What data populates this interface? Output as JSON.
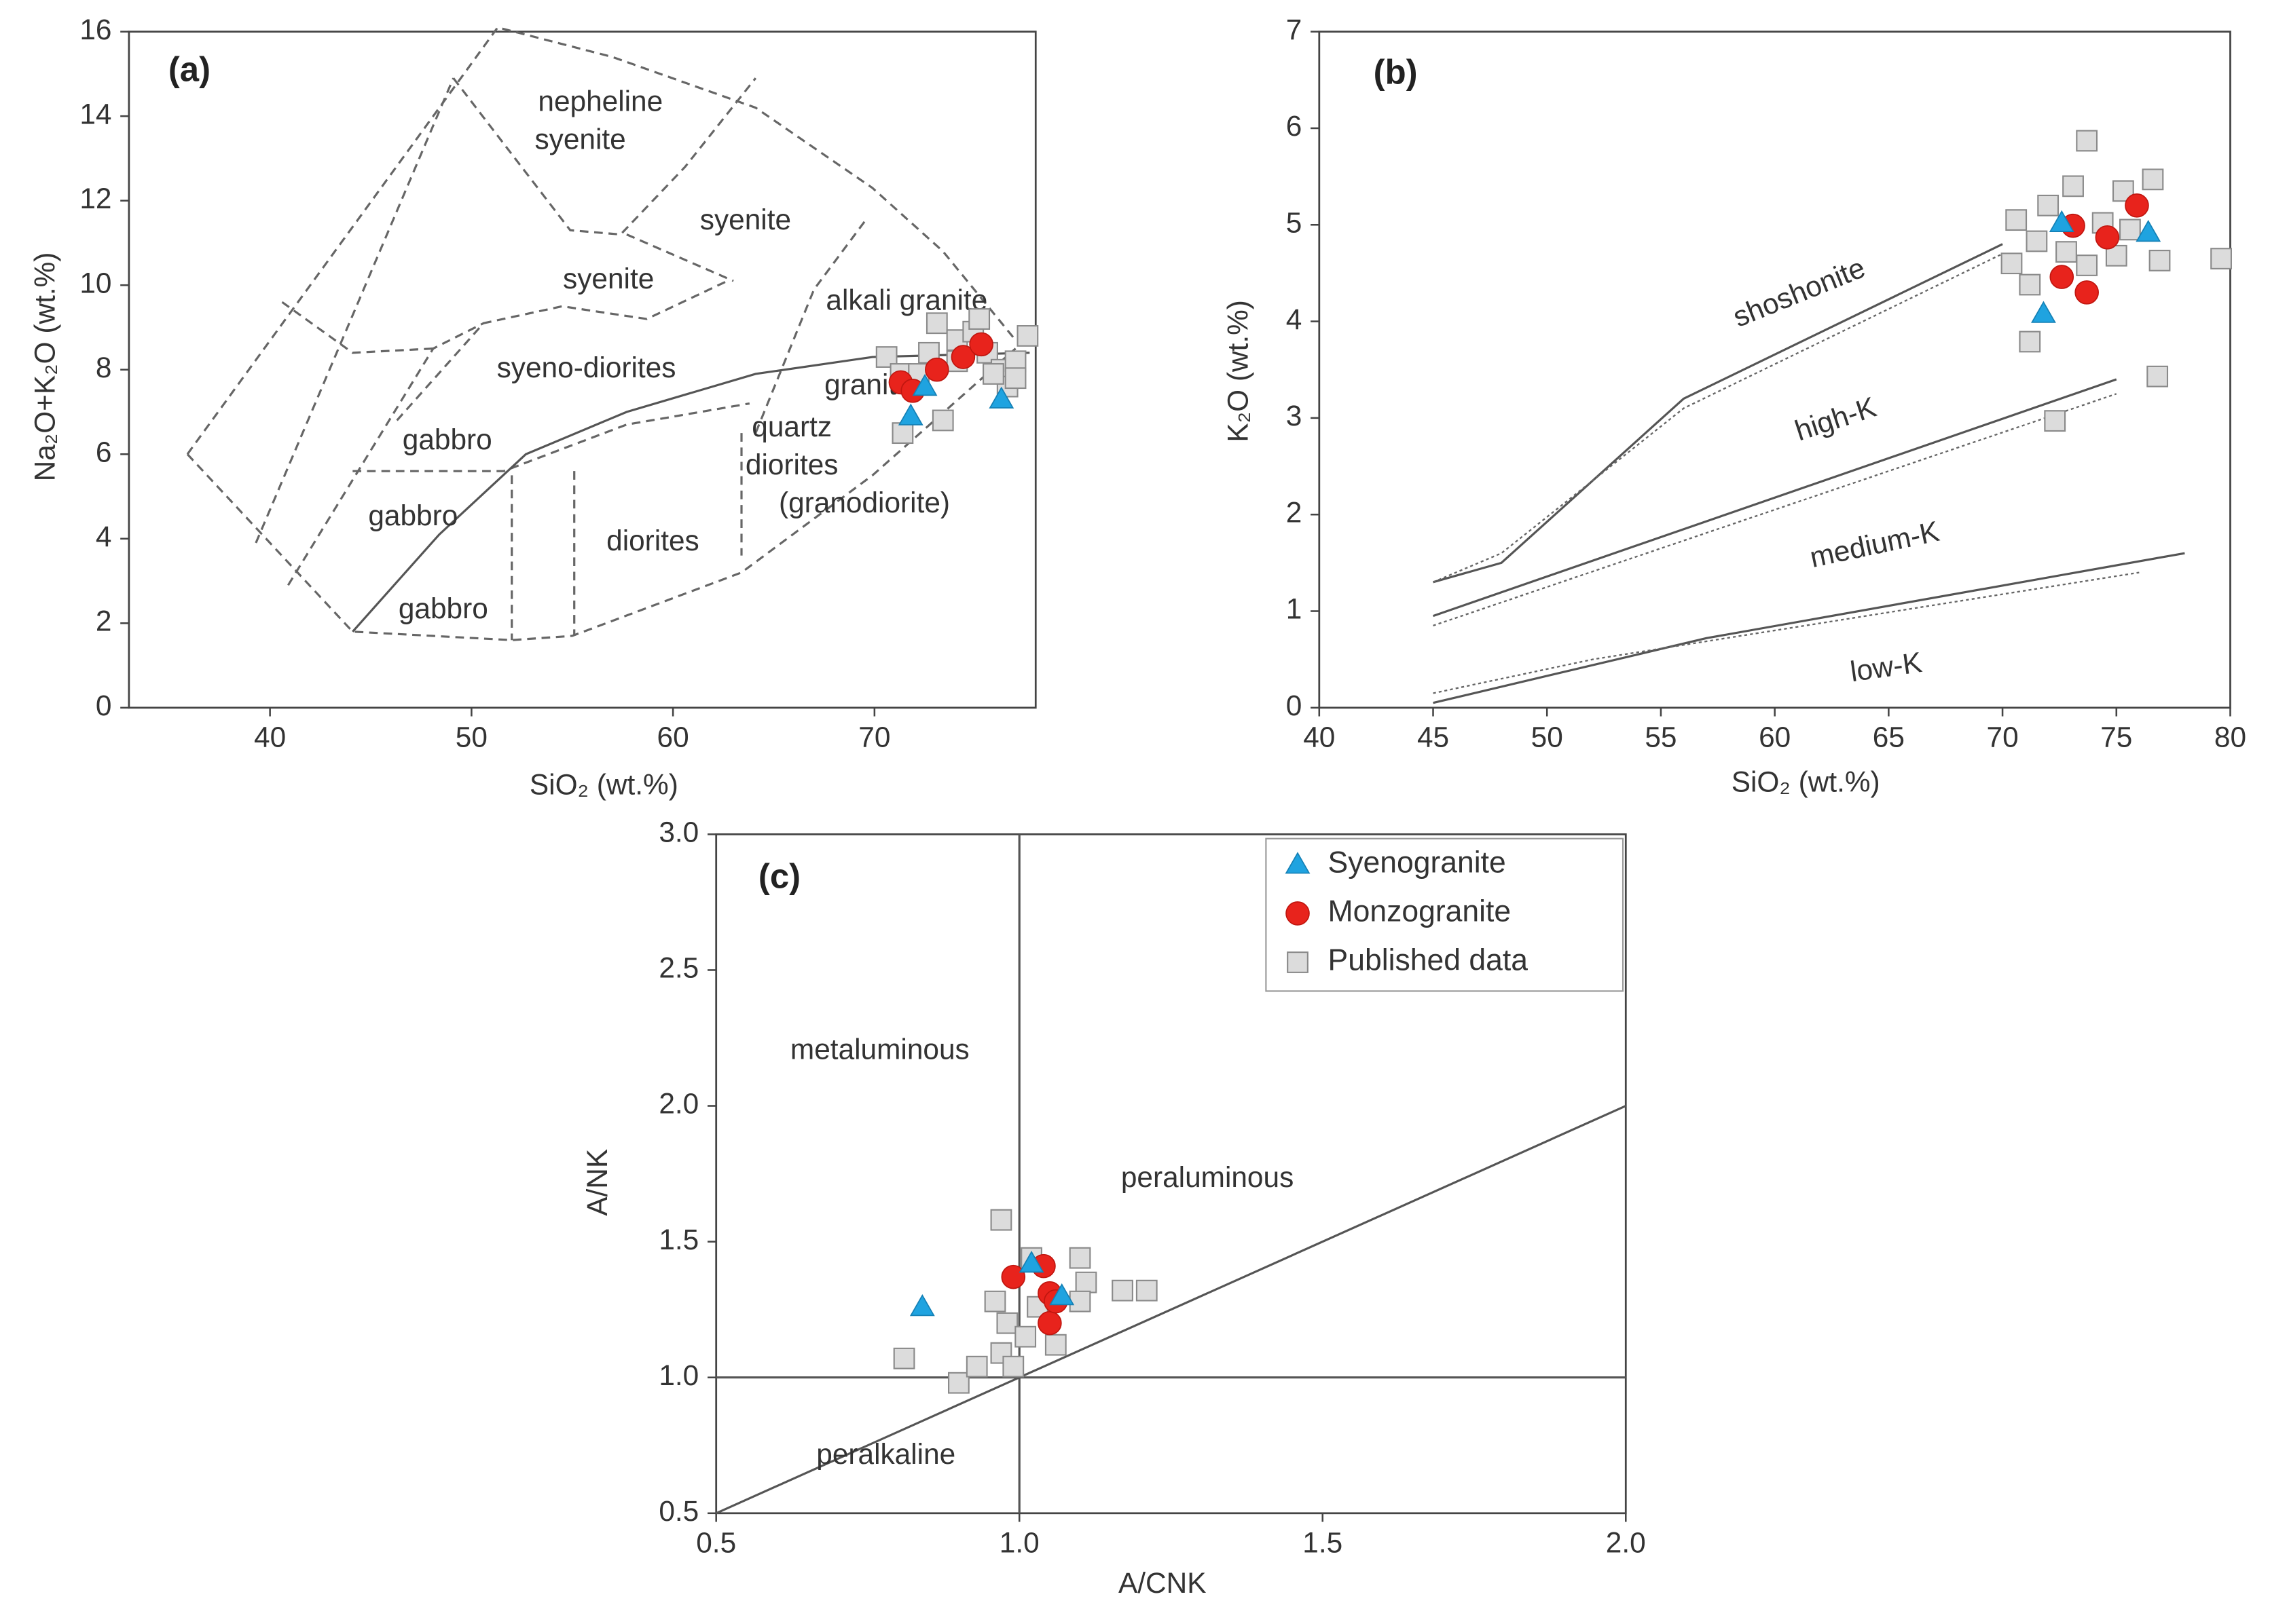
{
  "chart_data": [
    {
      "type": "scatter",
      "title": "(a)",
      "x_label": "SiO₂ (wt.%)",
      "y_label": "Na₂O+K₂O (wt.%)",
      "xlim": [
        33,
        78
      ],
      "ylim": [
        0,
        16
      ],
      "xticks": [
        40,
        50,
        60,
        70
      ],
      "yticks": [
        0,
        2,
        4,
        6,
        8,
        10,
        12,
        14,
        16
      ],
      "grid": false,
      "lines": [
        {
          "style": "dashed",
          "x": [
            35.9,
            51.3,
            57,
            64.1,
            69.9,
            73.4,
            77
          ],
          "y": [
            6.0,
            16.1,
            15.4,
            14.2,
            12.3,
            10.8,
            8.7
          ]
        },
        {
          "style": "dashed",
          "x": [
            35.9,
            44.1,
            52,
            55,
            63.4,
            69.9,
            77
          ],
          "y": [
            6.0,
            1.8,
            1.6,
            1.7,
            3.2,
            5.5,
            8.5
          ]
        },
        {
          "style": "dashed",
          "x": [
            39.3,
            49.1
          ],
          "y": [
            3.9,
            14.9
          ]
        },
        {
          "style": "dashed",
          "x": [
            40.9,
            48.1,
            50.6
          ],
          "y": [
            2.9,
            8.5,
            9.1
          ]
        },
        {
          "style": "dashed",
          "x": [
            40.6,
            44.1,
            48.1
          ],
          "y": [
            9.6,
            8.4,
            8.5
          ]
        },
        {
          "style": "dashed",
          "x": [
            46.3,
            50.6,
            54.5,
            58.7,
            62.7
          ],
          "y": [
            6.8,
            9.1,
            9.5,
            9.2,
            10.1
          ]
        },
        {
          "style": "dashed",
          "x": [
            44.1,
            51.6,
            57.7,
            63.8
          ],
          "y": [
            5.6,
            5.6,
            6.7,
            7.2
          ]
        },
        {
          "style": "dashed",
          "x": [
            52,
            52
          ],
          "y": [
            5.5,
            1.6
          ]
        },
        {
          "style": "dashed",
          "x": [
            55.1,
            55.1
          ],
          "y": [
            5.6,
            1.7
          ]
        },
        {
          "style": "dashed",
          "x": [
            63.4,
            63.4
          ],
          "y": [
            6.5,
            3.6
          ]
        },
        {
          "style": "dashed",
          "x": [
            49.1,
            54.9,
            57.4,
            60.6,
            64.1
          ],
          "y": [
            14.9,
            11.3,
            11.2,
            12.8,
            14.9
          ]
        },
        {
          "style": "dashed",
          "x": [
            57.7,
            63
          ],
          "y": [
            11.2,
            10.1
          ]
        },
        {
          "style": "dashed",
          "x": [
            69.5,
            67,
            64.1
          ],
          "y": [
            11.5,
            9.9,
            6.5
          ]
        },
        {
          "style": "solid",
          "x": [
            44.1,
            48.4,
            52.7,
            57.7,
            64.1,
            69.9,
            77.7
          ],
          "y": [
            1.8,
            4.1,
            6.0,
            7.0,
            7.9,
            8.3,
            8.4
          ]
        }
      ],
      "annotations": [
        {
          "text": "nepheline",
          "x": 56.4,
          "y": 14.3
        },
        {
          "text": "syenite",
          "x": 55.4,
          "y": 13.4
        },
        {
          "text": "syenite",
          "x": 63.6,
          "y": 11.5
        },
        {
          "text": "syenite",
          "x": 56.8,
          "y": 10.1
        },
        {
          "text": "alkali granite",
          "x": 71.6,
          "y": 9.6
        },
        {
          "text": "syeno-diorites",
          "x": 55.7,
          "y": 8.0
        },
        {
          "text": "granite",
          "x": 69.7,
          "y": 7.6
        },
        {
          "text": "gabbro",
          "x": 48.8,
          "y": 6.3
        },
        {
          "text": "gabbro",
          "x": 47.1,
          "y": 4.5
        },
        {
          "text": "gabbro",
          "x": 48.6,
          "y": 2.3
        },
        {
          "text": "quartz",
          "x": 65.9,
          "y": 6.6
        },
        {
          "text": "diorites",
          "x": 65.9,
          "y": 5.7
        },
        {
          "text": "(granodiorite)",
          "x": 69.5,
          "y": 4.8
        },
        {
          "text": "diorites",
          "x": 59,
          "y": 3.9
        }
      ],
      "series": [
        {
          "marker": "square",
          "color": "#dcdcdc",
          "x": [
            70.6,
            71.3,
            71.4,
            73.4,
            73.1,
            74.1,
            74.9,
            75.6,
            76.3,
            77,
            77.6,
            76.6,
            75.9,
            74.1,
            72.7,
            72.2,
            75.2,
            77
          ],
          "y": [
            8.3,
            7.9,
            6.5,
            6.8,
            9.1,
            8.7,
            8.9,
            8.4,
            8.0,
            8.2,
            8.8,
            7.6,
            7.9,
            8.2,
            8.4,
            7.9,
            9.2,
            7.8
          ]
        },
        {
          "marker": "circle",
          "color": "#e8231c",
          "x": [
            71.3,
            73.1,
            74.4,
            75.3,
            71.9
          ],
          "y": [
            7.7,
            8.0,
            8.3,
            8.6,
            7.5
          ]
        },
        {
          "marker": "triangle",
          "color": "#1fa3e0",
          "x": [
            71.8,
            76.3,
            72.5
          ],
          "y": [
            6.9,
            7.3,
            7.6
          ]
        }
      ]
    },
    {
      "type": "scatter",
      "title": "(b)",
      "x_label": "SiO₂ (wt.%)",
      "y_label": "K₂O (wt.%)",
      "xlim": [
        40,
        80
      ],
      "ylim": [
        0,
        7
      ],
      "xticks": [
        40,
        45,
        50,
        55,
        60,
        65,
        70,
        75,
        80
      ],
      "yticks": [
        0,
        1,
        2,
        3,
        4,
        5,
        6,
        7
      ],
      "grid": false,
      "lines": [
        {
          "style": "solid",
          "x": [
            45,
            48,
            56,
            70
          ],
          "y": [
            1.3,
            1.5,
            3.2,
            4.8
          ]
        },
        {
          "style": "dotted",
          "x": [
            45,
            48,
            56,
            70
          ],
          "y": [
            1.3,
            1.6,
            3.1,
            4.7
          ]
        },
        {
          "style": "solid",
          "x": [
            45,
            75
          ],
          "y": [
            0.95,
            3.4
          ]
        },
        {
          "style": "dotted",
          "x": [
            45,
            75
          ],
          "y": [
            0.85,
            3.25
          ]
        },
        {
          "style": "solid",
          "x": [
            45,
            57,
            78
          ],
          "y": [
            0.05,
            0.72,
            1.6
          ]
        },
        {
          "style": "dotted",
          "x": [
            45,
            52,
            76
          ],
          "y": [
            0.15,
            0.5,
            1.4
          ]
        }
      ],
      "annotations": [
        {
          "text": "shoshonite",
          "x": 61.1,
          "y": 4.28
        },
        {
          "text": "high-K",
          "x": 62.7,
          "y": 2.97
        },
        {
          "text": "medium-K",
          "x": 64.4,
          "y": 1.67
        },
        {
          "text": "low-K",
          "x": 64.9,
          "y": 0.4
        }
      ],
      "series": [
        {
          "marker": "square",
          "color": "#dcdcdc",
          "x": [
            70.6,
            70.4,
            71.2,
            72.0,
            73.1,
            73.7,
            75.3,
            76.6,
            75,
            76.9,
            79.6,
            76.8,
            72.3,
            71.5,
            72.8,
            73.7,
            75.6,
            71.2,
            74.4
          ],
          "y": [
            5.05,
            4.6,
            3.79,
            5.2,
            5.4,
            5.87,
            5.35,
            5.47,
            4.68,
            4.63,
            4.65,
            3.43,
            2.97,
            4.83,
            4.72,
            4.58,
            4.95,
            4.38,
            5.02
          ]
        },
        {
          "marker": "circle",
          "color": "#e8231c",
          "x": [
            73.1,
            75.9,
            74.6,
            72.6,
            73.7
          ],
          "y": [
            4.99,
            5.2,
            4.87,
            4.46,
            4.3
          ]
        },
        {
          "marker": "triangle",
          "color": "#1fa3e0",
          "x": [
            72.6,
            71.8,
            76.4
          ],
          "y": [
            5.02,
            4.08,
            4.92
          ]
        }
      ]
    },
    {
      "type": "scatter",
      "title": "(c)",
      "x_label": "A/CNK",
      "y_label": "A/NK",
      "xlim": [
        0.5,
        2.0
      ],
      "ylim": [
        0.5,
        3.0
      ],
      "xticks": [
        0.5,
        {
          "value": 1,
          "label": "1.0"
        },
        1.5,
        {
          "value": 2,
          "label": "2.0"
        }
      ],
      "yticks": [
        0.5,
        {
          "value": 1,
          "label": "1.0"
        },
        1.5,
        {
          "value": 2,
          "label": "2.0"
        },
        2.5,
        {
          "value": 3,
          "label": "3.0"
        }
      ],
      "grid": false,
      "legend": "upper right",
      "lines": [
        {
          "style": "solid",
          "x": [
            1,
            1
          ],
          "y": [
            0.5,
            3.0
          ]
        },
        {
          "style": "solid",
          "x": [
            0.5,
            2.0
          ],
          "y": [
            1,
            1
          ]
        },
        {
          "style": "solid",
          "x": [
            0.5,
            2.0
          ],
          "y": [
            0.5,
            2.0
          ]
        }
      ],
      "annotations": [
        {
          "text": "metaluminous",
          "x": 0.77,
          "y": 2.2
        },
        {
          "text": "peraluminous",
          "x": 1.31,
          "y": 1.73
        },
        {
          "text": "peralkaline",
          "x": 0.78,
          "y": 0.71
        }
      ],
      "series": [
        {
          "name": "Published data",
          "marker": "square",
          "color": "#dcdcdc",
          "x": [
            0.81,
            0.97,
            1.02,
            1.1,
            1.11,
            1.17,
            1.21,
            0.9,
            0.93,
            0.97,
            0.96,
            0.98,
            1.01,
            1.03,
            1.1,
            1.06,
            0.99
          ],
          "y": [
            1.07,
            1.58,
            1.44,
            1.44,
            1.35,
            1.32,
            1.32,
            0.98,
            1.04,
            1.09,
            1.28,
            1.2,
            1.15,
            1.26,
            1.28,
            1.12,
            1.04
          ]
        },
        {
          "name": "Monzogranite",
          "marker": "circle",
          "color": "#e8231c",
          "x": [
            0.99,
            1.04,
            1.05,
            1.05,
            1.06
          ],
          "y": [
            1.37,
            1.41,
            1.31,
            1.2,
            1.28
          ]
        },
        {
          "name": "Syenogranite",
          "marker": "triangle",
          "color": "#1fa3e0",
          "x": [
            0.84,
            1.02,
            1.07
          ],
          "y": [
            1.26,
            1.42,
            1.3
          ]
        }
      ]
    }
  ]
}
